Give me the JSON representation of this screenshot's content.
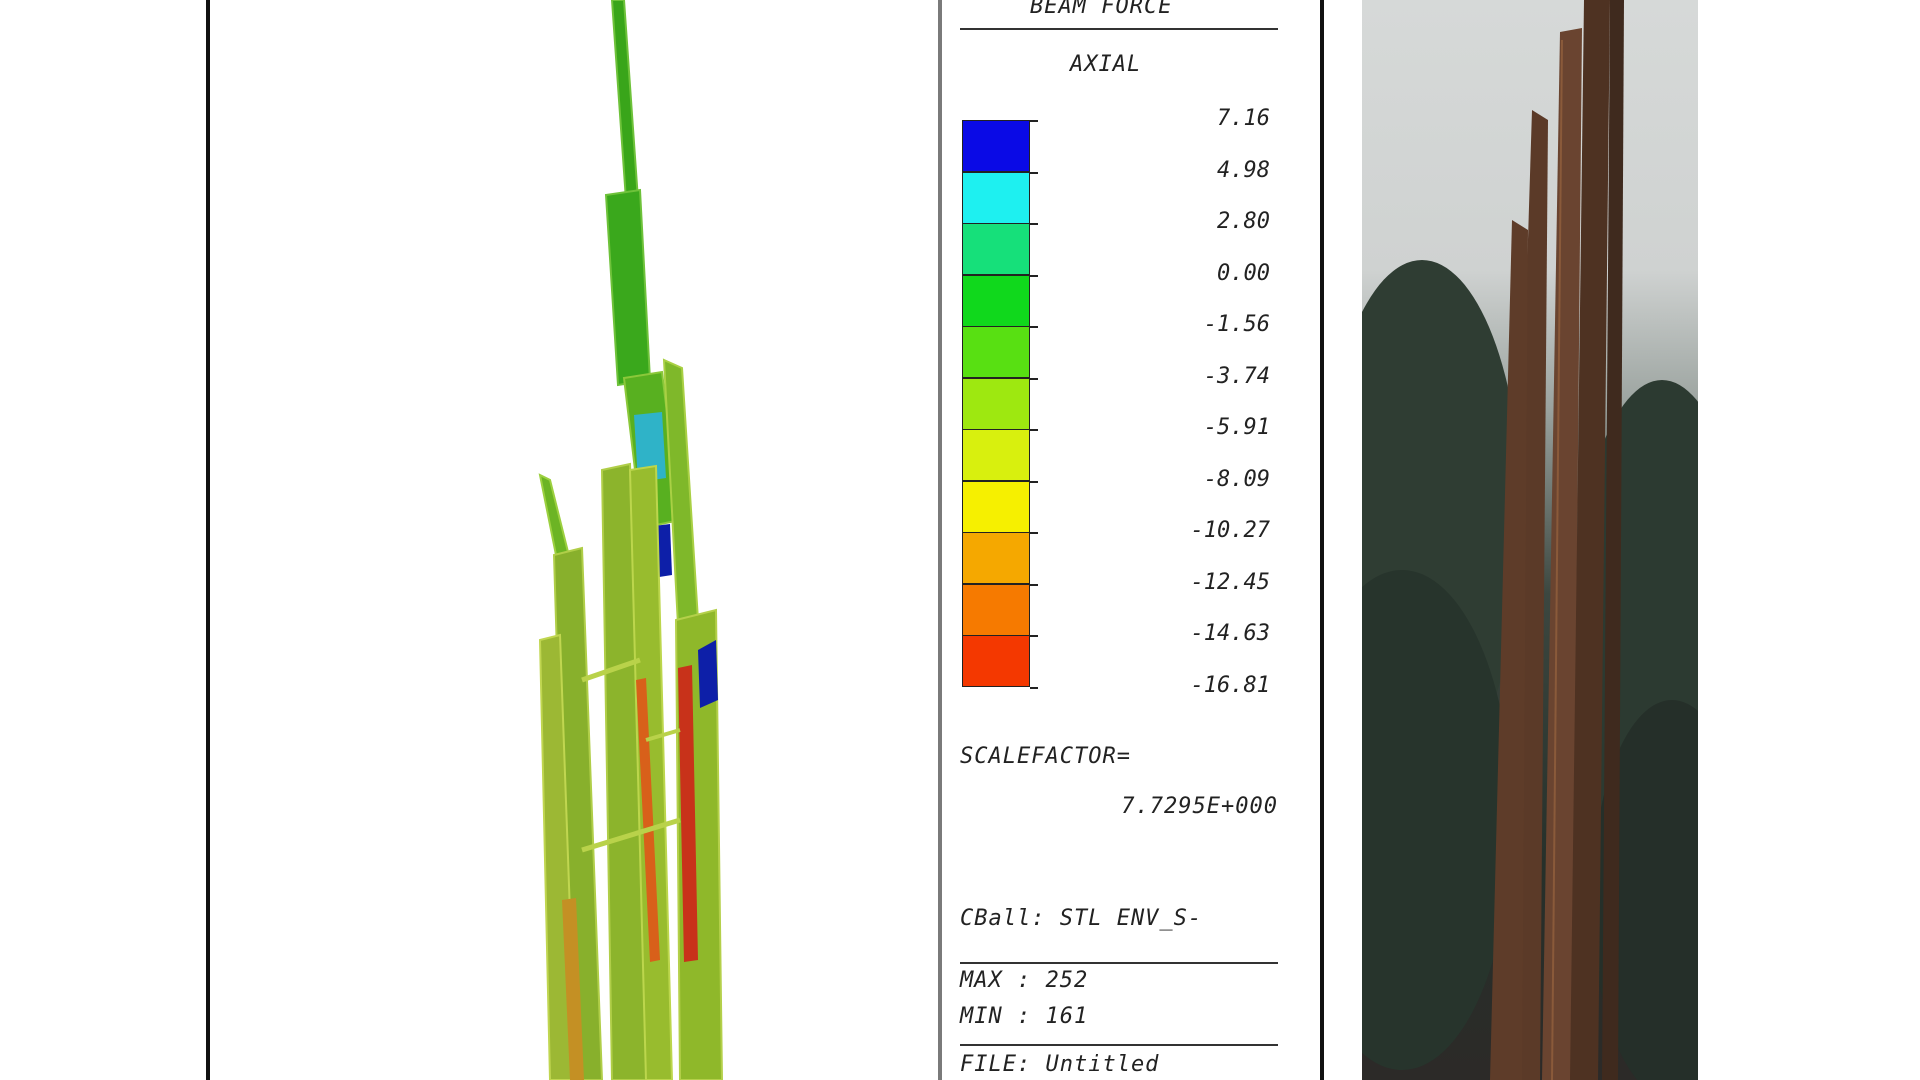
{
  "legend": {
    "header": "BEAM FORCE",
    "component": "AXIAL",
    "values": [
      "7.16",
      "4.98",
      "2.80",
      "0.00",
      "-1.56",
      "-3.74",
      "-5.91",
      "-8.09",
      "-10.27",
      "-12.45",
      "-14.63",
      "-16.81"
    ],
    "bands": [
      "#0a0ae6",
      "#1ef0f0",
      "#16e07a",
      "#10d81c",
      "#58e012",
      "#9ee810",
      "#d8f00e",
      "#f6f000",
      "#f5a800",
      "#f67a00",
      "#f43800"
    ],
    "scalefactor_label": "SCALEFACTOR=",
    "scalefactor_value": "7.7295E+000",
    "cb_label": "CBall: STL ENV_S-",
    "max_label": "MAX : 252",
    "min_label": "MIN : 161",
    "file_label": "FILE: Untitled"
  },
  "colors": {
    "panel_border": "#111111",
    "model_olive": "#8fb82a",
    "model_green": "#38a818",
    "photo_steel": "#5b3a28"
  }
}
